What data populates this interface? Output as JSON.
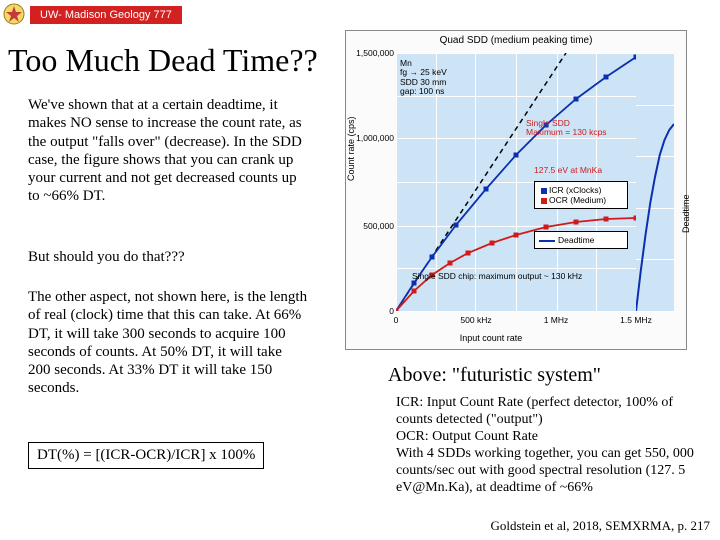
{
  "header": {
    "badge": "UW- Madison Geology 777"
  },
  "title": "Too Much Dead Time??",
  "paragraphs": {
    "p1": "We've shown that at a certain deadtime, it makes NO sense to increase the count rate, as the output \"falls over\" (decrease). In the SDD case, the figure shows that you can crank up your current and not get decreased counts up to ~66% DT.",
    "p2": "But should you do that???",
    "p3": "The other aspect, not shown here, is the length of real (clock) time that this can take. At 66% DT, it will take 300 seconds to acquire 100 seconds of counts. At 50% DT, it will take 200 seconds. At 33% DT it will take 150 seconds."
  },
  "formula": "DT(%) =  [(ICR-OCR)/ICR] x 100%",
  "chart": {
    "title": "Quad SDD (medium peaking time)",
    "ylabel": "Count rate (cps)",
    "ylabel2": "Deadtime",
    "xlabel": "Input count rate",
    "background_color": "#cde4f7",
    "grid_color": "#ffffff",
    "yticks": [
      {
        "label": "1,500,000",
        "frac": 0.0
      },
      {
        "label": "1,000,000",
        "frac": 0.33
      },
      {
        "label": "500,000",
        "frac": 0.67
      },
      {
        "label": "0",
        "frac": 1.0
      }
    ],
    "xticks": [
      {
        "label": "0",
        "frac": 0.0
      },
      {
        "label": "500 kHz",
        "frac": 0.33
      },
      {
        "label": "1 MHz",
        "frac": 0.67
      },
      {
        "label": "1.5 MHz",
        "frac": 1.0
      }
    ],
    "annotations": {
      "mn": "Mn\nfg → 25 keV\nSDD 30 mm\ngap: 100 ns",
      "single_sdd": "Single SDD\nMaximum = 130 kcps",
      "res": "127.5 eV at MnKa",
      "chip": "Single SDD chip: maximum output ~ 130 kHz"
    },
    "legend": {
      "icr": "ICR (xClocks)",
      "ocr": "OCR (Medium)",
      "deadtime": "Deadtime"
    },
    "curves": {
      "icr_color": "#0a2fb0",
      "ocr_color": "#d11a1a",
      "deadtime_color": "#0a2fb0",
      "dash_color": "#000000",
      "icr_points": [
        [
          0,
          258
        ],
        [
          18,
          230
        ],
        [
          36,
          204
        ],
        [
          60,
          172
        ],
        [
          90,
          136
        ],
        [
          120,
          102
        ],
        [
          150,
          72
        ],
        [
          180,
          46
        ],
        [
          210,
          24
        ],
        [
          240,
          4
        ]
      ],
      "ocr_points": [
        [
          0,
          258
        ],
        [
          18,
          238
        ],
        [
          36,
          222
        ],
        [
          54,
          210
        ],
        [
          72,
          200
        ],
        [
          96,
          190
        ],
        [
          120,
          182
        ],
        [
          150,
          174
        ],
        [
          180,
          169
        ],
        [
          210,
          166
        ],
        [
          240,
          165
        ]
      ],
      "deadtime_points": [
        [
          0,
          258
        ],
        [
          30,
          218
        ],
        [
          60,
          182
        ],
        [
          90,
          150
        ],
        [
          120,
          124
        ],
        [
          150,
          102
        ],
        [
          180,
          87
        ],
        [
          210,
          77
        ],
        [
          240,
          71
        ]
      ]
    }
  },
  "above_caption": "Above:  \"futuristic system\"",
  "right_text": "ICR: Input Count Rate (perfect detector, 100% of counts detected (\"output\")\nOCR: Output Count Rate\nWith 4 SDDs working together, you can get 550, 000 counts/sec out with good spectral resolution (127. 5 eV@Mn.Ka), at deadtime of ~66%",
  "citation": "Goldstein et al, 2018, SEMXRMA, p. 217"
}
